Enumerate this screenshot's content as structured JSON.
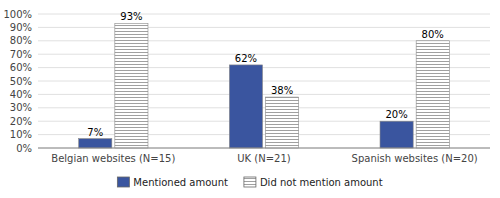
{
  "chart_data": {
    "type": "bar",
    "categories": [
      "Belgian websites (N=15)",
      "UK (N=21)",
      "Spanish websites (N=20)"
    ],
    "series": [
      {
        "name": "Mentioned amount",
        "color": "#3a559f",
        "values": [
          7,
          62,
          20
        ],
        "value_labels": [
          "7%",
          "62%",
          "20%"
        ]
      },
      {
        "name": "Did not mention amount",
        "color": "#ffffff",
        "values": [
          93,
          38,
          80
        ],
        "value_labels": [
          "93%",
          "38%",
          "80%"
        ]
      }
    ],
    "ylim": [
      0,
      100
    ],
    "yticks": [
      {
        "value": 0,
        "label": "0%"
      },
      {
        "value": 10,
        "label": "10%"
      },
      {
        "value": 20,
        "label": "20%"
      },
      {
        "value": 30,
        "label": "30%"
      },
      {
        "value": 40,
        "label": "40%"
      },
      {
        "value": 50,
        "label": "50%"
      },
      {
        "value": 60,
        "label": "60%"
      },
      {
        "value": 70,
        "label": "70%"
      },
      {
        "value": 80,
        "label": "80%"
      },
      {
        "value": 90,
        "label": "90%"
      },
      {
        "value": 100,
        "label": "100%"
      }
    ],
    "grid": true,
    "data_labels": true,
    "legend": "bottom"
  }
}
